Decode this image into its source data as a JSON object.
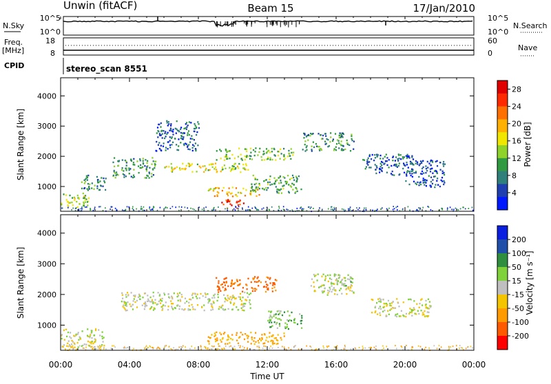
{
  "header": {
    "station": "Unwin (fitACF)",
    "beam": "Beam 15",
    "date": "17/Jan/2010"
  },
  "top_panels": {
    "nsky_label": "N.Sky",
    "nsky_tick_hi": "10^5",
    "nsky_tick_lo": "10^0",
    "nsearch_label": "N.Search",
    "nsearch_tick_hi": "10^5",
    "nsearch_tick_lo": "10^0",
    "freq_label": "Freq.",
    "freq_unit": "[MHz]",
    "freq_tick_hi": "18",
    "freq_tick_lo": "8",
    "nave_label": "Nave",
    "nave_tick_hi": "60",
    "nave_tick_lo": "0",
    "cpid_label": "CPID",
    "cpid_value": "stereo_scan 8551"
  },
  "chart_data": [
    {
      "type": "heatmap",
      "id": "power",
      "ylabel": "Slant Range [km]",
      "ylim": [
        180,
        4600
      ],
      "yticks": [
        "1000",
        "2000",
        "3000",
        "4000"
      ],
      "ytick_values": [
        1000,
        2000,
        3000,
        4000
      ],
      "colorbar": {
        "label": "Power [dB]",
        "ticks": [
          "4",
          "8",
          "12",
          "16",
          "20",
          "24",
          "28"
        ],
        "colors": [
          "#0018ff",
          "#1f3fb0",
          "#2f7f7a",
          "#2f9a3f",
          "#8fd22a",
          "#f0e600",
          "#ffb000",
          "#ff7000",
          "#ff2a00",
          "#e00000"
        ]
      },
      "regions": [
        {
          "t0": 0.0,
          "t1": 1.6,
          "r0": 300,
          "r1": 800,
          "value": 14
        },
        {
          "t0": 1.0,
          "t1": 2.6,
          "r0": 900,
          "r1": 1400,
          "value": 8
        },
        {
          "t0": 3.0,
          "t1": 5.5,
          "r0": 1300,
          "r1": 2000,
          "value": 10
        },
        {
          "t0": 5.5,
          "t1": 8.0,
          "r0": 2200,
          "r1": 3200,
          "value": 6
        },
        {
          "t0": 6.0,
          "t1": 11.0,
          "r0": 1500,
          "r1": 1800,
          "value": 16
        },
        {
          "t0": 8.5,
          "t1": 11.5,
          "r0": 700,
          "r1": 1000,
          "value": 19
        },
        {
          "t0": 9.3,
          "t1": 10.6,
          "r0": 300,
          "r1": 600,
          "value": 25
        },
        {
          "t0": 9.0,
          "t1": 13.5,
          "r0": 1900,
          "r1": 2300,
          "value": 13
        },
        {
          "t0": 11.0,
          "t1": 14.0,
          "r0": 800,
          "r1": 1400,
          "value": 11
        },
        {
          "t0": 14.0,
          "t1": 17.0,
          "r0": 2200,
          "r1": 2800,
          "value": 9
        },
        {
          "t0": 17.5,
          "t1": 20.5,
          "r0": 1400,
          "r1": 2100,
          "value": 6
        },
        {
          "t0": 20.0,
          "t1": 22.3,
          "r0": 1000,
          "r1": 1900,
          "value": 5
        }
      ]
    },
    {
      "type": "heatmap",
      "id": "velocity",
      "ylabel": "Slant Range [km]",
      "ylim": [
        180,
        4600
      ],
      "yticks": [
        "1000",
        "2000",
        "3000",
        "4000"
      ],
      "ytick_values": [
        1000,
        2000,
        3000,
        4000
      ],
      "colorbar": {
        "label": "Velocity [m s⁻¹]",
        "ticks": [
          "200",
          "100",
          "50",
          "15",
          "-15",
          "-50",
          "-100",
          "-200"
        ],
        "colors": [
          "#0a1ee0",
          "#1f4fa8",
          "#2f8f3f",
          "#7fd23a",
          "#bfbfbf",
          "#f5c400",
          "#ff9a00",
          "#ff5a00",
          "#ff0000"
        ]
      },
      "regions": [
        {
          "t0": 0.0,
          "t1": 2.5,
          "r0": 300,
          "r1": 900,
          "value": 0
        },
        {
          "t0": 3.5,
          "t1": 11.0,
          "r0": 1500,
          "r1": 2100,
          "value": 0
        },
        {
          "t0": 8.5,
          "t1": 13.0,
          "r0": 400,
          "r1": 800,
          "value": -60
        },
        {
          "t0": 9.0,
          "t1": 12.5,
          "r0": 2100,
          "r1": 2600,
          "value": -120
        },
        {
          "t0": 12.0,
          "t1": 14.0,
          "r0": 900,
          "r1": 1500,
          "value": 40
        },
        {
          "t0": 14.5,
          "t1": 17.0,
          "r0": 2000,
          "r1": 2700,
          "value": 0
        },
        {
          "t0": 16.0,
          "t1": 17.0,
          "r0": 2300,
          "r1": 2600,
          "value": 30
        },
        {
          "t0": 18.0,
          "t1": 21.5,
          "r0": 1300,
          "r1": 1900,
          "value": 0
        }
      ]
    }
  ],
  "x_axis": {
    "label": "Time UT",
    "ticks": [
      "00:00",
      "04:00",
      "08:00",
      "12:00",
      "16:00",
      "20:00",
      "00:00"
    ],
    "tick_hours": [
      0,
      4,
      8,
      12,
      16,
      20,
      24
    ]
  }
}
